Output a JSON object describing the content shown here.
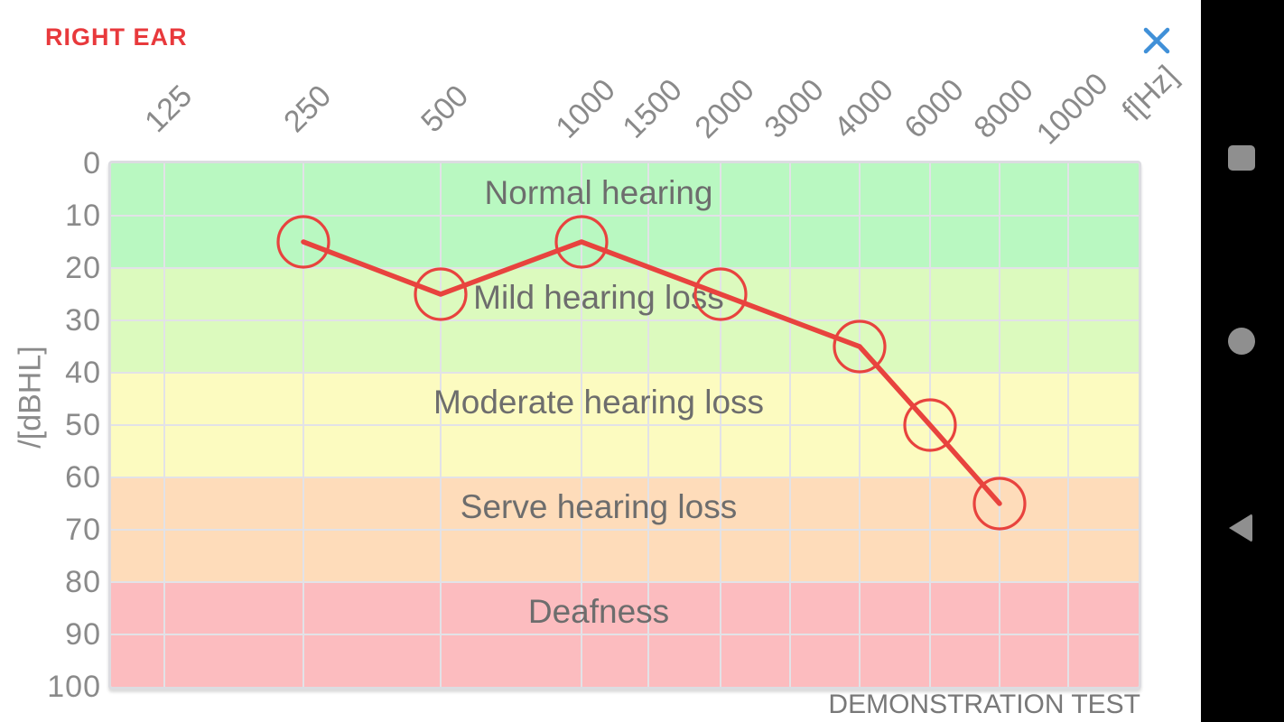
{
  "header": {
    "title": "RIGHT EAR",
    "title_color": "#e8393c",
    "close_icon": "close-icon",
    "close_color": "#4090d8"
  },
  "chart_data": {
    "type": "line",
    "x_axis": {
      "unit_label": "f[Hz]",
      "ticks": [
        "125",
        "250",
        "500",
        "1000",
        "1500",
        "2000",
        "3000",
        "4000",
        "6000",
        "8000",
        "10000"
      ]
    },
    "y_axis": {
      "unit_label": "/[dBHL]",
      "ticks": [
        "0",
        "10",
        "20",
        "30",
        "40",
        "50",
        "60",
        "70",
        "80",
        "90",
        "100"
      ],
      "min": 0,
      "max": 100,
      "inverted": true,
      "grid": true
    },
    "zones": [
      {
        "label": "Normal hearing",
        "from_db": 0,
        "to_db": 20,
        "color": "#b9f8c1"
      },
      {
        "label": "Mild hearing loss",
        "from_db": 20,
        "to_db": 40,
        "color": "#dcfabe"
      },
      {
        "label": "Moderate hearing loss",
        "from_db": 40,
        "to_db": 60,
        "color": "#fcfbc0"
      },
      {
        "label": "Serve hearing loss",
        "from_db": 60,
        "to_db": 80,
        "color": "#fedcba"
      },
      {
        "label": "Deafness",
        "from_db": 80,
        "to_db": 100,
        "color": "#fcbcbf"
      }
    ],
    "series": [
      {
        "name": "right ear threshold",
        "color": "#e8433e",
        "marker": "circle",
        "points": [
          {
            "freq": 250,
            "db": 15
          },
          {
            "freq": 500,
            "db": 25
          },
          {
            "freq": 1000,
            "db": 15
          },
          {
            "freq": 2000,
            "db": 25
          },
          {
            "freq": 4000,
            "db": 35
          },
          {
            "freq": 6000,
            "db": 50
          },
          {
            "freq": 8000,
            "db": 65
          }
        ]
      }
    ],
    "annotation": "DEMONSTRATION TEST",
    "legend": "none"
  },
  "navbar": {
    "bg": "#000000",
    "icon_color": "#8f8f8f",
    "icons": [
      {
        "name": "recents-icon",
        "shape": "square"
      },
      {
        "name": "home-icon",
        "shape": "circle"
      },
      {
        "name": "back-icon",
        "shape": "triangle-left"
      }
    ]
  }
}
